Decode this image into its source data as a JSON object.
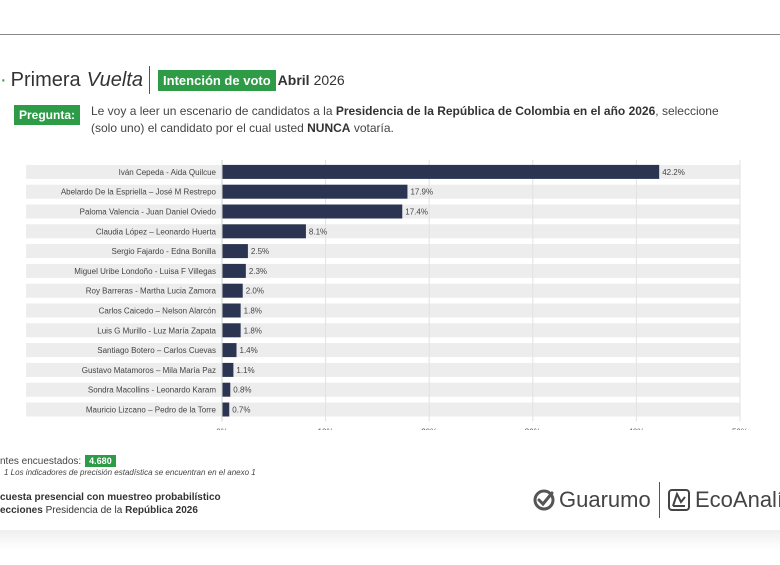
{
  "header": {
    "dot": "·",
    "title_main": "Primera",
    "title_italic": "Vuelta",
    "tag": "Intención de voto",
    "month": "Abril",
    "year": "2026"
  },
  "question": {
    "tag": "Pregunta:",
    "parts": [
      {
        "text": "Le voy a leer un escenario de candidatos a la ",
        "bold": false
      },
      {
        "text": "Presidencia de la República de Colombia en el año 2026",
        "bold": true
      },
      {
        "text": ", seleccione (solo uno) el candidato por el cual usted ",
        "bold": false
      },
      {
        "text": "NUNCA",
        "bold": true
      },
      {
        "text": " votaría.",
        "bold": false
      }
    ]
  },
  "chart_data": {
    "type": "bar",
    "orientation": "horizontal",
    "categories": [
      "Iván Cepeda - Aida Quilcue",
      "Abelardo De la Espriella – José M Restrepo",
      "Paloma Valencia - Juan Daniel Oviedo",
      "Claudia López – Leonardo Huerta",
      "Sergio Fajardo - Edna Bonilla",
      "Miguel Uribe Londoño - Luisa F Villegas",
      "Roy Barreras - Martha Lucia Zamora",
      "Carlos Caicedo – Nelson Alarcón",
      "Luis G Murillo - Luz María Zapata",
      "Santiago Botero – Carlos Cuevas",
      "Gustavo Matamoros – Mila María Paz",
      "Sondra Macollins - Leonardo Karam",
      "Mauricio Lizcano – Pedro de la Torre"
    ],
    "values": [
      42.2,
      17.9,
      17.4,
      8.1,
      2.5,
      2.3,
      2.0,
      1.8,
      1.8,
      1.4,
      1.1,
      0.8,
      0.7
    ],
    "value_labels": [
      "42.2%",
      "17.9%",
      "17.4%",
      "8.1%",
      "2.5%",
      "2.3%",
      "2.0%",
      "1.8%",
      "1.8%",
      "1.4%",
      "1.1%",
      "0.8%",
      "0.7%"
    ],
    "xlim": [
      0,
      50
    ],
    "xticks": [
      "0%",
      "10%",
      "20%",
      "30%",
      "40%",
      "50%"
    ],
    "grid": true,
    "bar_color": "#2b3552",
    "row_band_color": "#ededed"
  },
  "footer": {
    "respondents_label": "ntes encuestados:",
    "respondents_value": "4.680",
    "note": "1 Los indicadores de precisión estadística se encuentran en el anexo 1",
    "line1_bold": "cuesta presencial con muestreo probabilístico",
    "line2_bold": "ecciones",
    "line2_rest": " Presidencia de la ",
    "line2_bold2": "República 2026"
  },
  "logos": {
    "guarumo": "Guarumo",
    "eco": "EcoAnalí",
    "guarumo_icon": "check-circle-icon",
    "eco_icon": "chart-box-icon"
  },
  "colors": {
    "accent_green": "#2e9b47",
    "bar_navy": "#2b3552"
  }
}
